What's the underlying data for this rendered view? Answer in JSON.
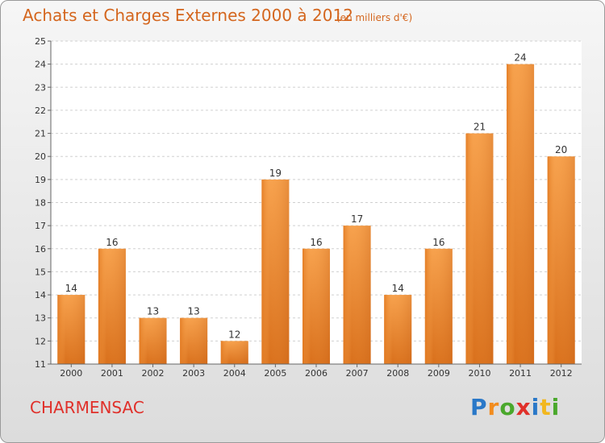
{
  "title": "Achats et Charges Externes 2000 à 2012",
  "subtitle": "(en milliers d'€)",
  "commune": "CHARMENSAC",
  "logo": {
    "p": "P",
    "r": "r",
    "o": "o",
    "x": "x",
    "i": "i",
    "t": "t",
    "i2": "i"
  },
  "colors": {
    "bar": "#f0922e",
    "title": "#d4661e",
    "commune": "#e0302a"
  },
  "chart_data": {
    "type": "bar",
    "title": "Achats et Charges Externes 2000 à 2012",
    "subtitle": "(en milliers d'€)",
    "categories": [
      "2000",
      "2001",
      "2002",
      "2003",
      "2004",
      "2005",
      "2006",
      "2007",
      "2008",
      "2009",
      "2010",
      "2011",
      "2012"
    ],
    "values": [
      14,
      16,
      13,
      13,
      12,
      19,
      16,
      17,
      14,
      16,
      21,
      24,
      20
    ],
    "ylim": [
      11,
      25
    ],
    "yticks": [
      11,
      12,
      13,
      14,
      15,
      16,
      17,
      18,
      19,
      20,
      21,
      22,
      23,
      24,
      25
    ],
    "grid": true,
    "data_labels": true
  }
}
